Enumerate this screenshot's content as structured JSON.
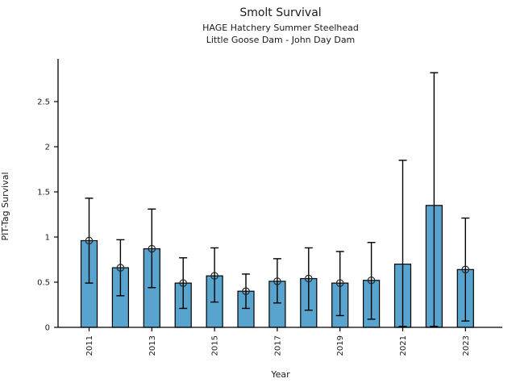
{
  "chart_data": {
    "type": "bar",
    "title": "Smolt Survival",
    "subtitle1": "HAGE Hatchery Summer Steelhead",
    "subtitle2": "Little Goose Dam - John Day Dam",
    "xlabel": "Year",
    "ylabel": "PIT-Tag Survival",
    "categories": [
      2011,
      2012,
      2013,
      2014,
      2015,
      2016,
      2017,
      2018,
      2019,
      2020,
      2021,
      2022,
      2023
    ],
    "values": [
      0.96,
      0.66,
      0.87,
      0.49,
      0.57,
      0.4,
      0.51,
      0.54,
      0.49,
      0.52,
      0.7,
      1.35,
      0.64
    ],
    "error_low": [
      0.49,
      0.35,
      0.44,
      0.21,
      0.28,
      0.21,
      0.27,
      0.19,
      0.13,
      0.09,
      0.01,
      0.01,
      0.07
    ],
    "error_high": [
      1.43,
      0.97,
      1.31,
      0.77,
      0.88,
      0.59,
      0.76,
      0.88,
      0.84,
      0.94,
      1.85,
      2.82,
      1.21
    ],
    "point_marker_at_top": [
      true,
      true,
      true,
      true,
      true,
      true,
      true,
      true,
      true,
      true,
      false,
      false,
      true
    ],
    "yticks": [
      0,
      0.5,
      1,
      1.5,
      2,
      2.5
    ],
    "ytick_labels": [
      "0",
      "0.5",
      "1",
      "1.5",
      "2",
      "2.5"
    ],
    "xtick_labels": [
      "2011",
      "2013",
      "2015",
      "2017",
      "2019",
      "2021",
      "2023"
    ],
    "ylim": [
      0,
      2.96
    ],
    "grid": false,
    "legend": null,
    "colors": {
      "bar_fill": "#58A4CE",
      "bar_edge": "#000000",
      "error_bar": "#000000",
      "marker_edge": "#262626",
      "axis": "#000000",
      "text": "#1a1a1a"
    }
  }
}
